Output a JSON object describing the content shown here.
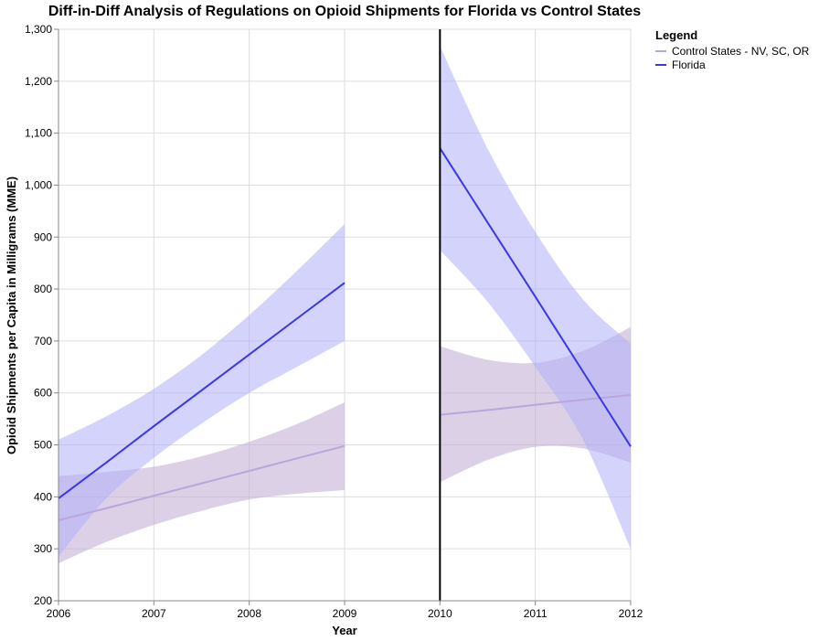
{
  "chart_data": {
    "type": "line",
    "title": "Diff-in-Diff Analysis of Regulations on Opioid Shipments for Florida vs Control States",
    "xlabel": "Year",
    "ylabel": "Opioid Shipments per Capita in Milligrams (MME)",
    "xlim": [
      2006,
      2012
    ],
    "ylim": [
      200,
      1300
    ],
    "x_ticks": [
      "2006",
      "2007",
      "2008",
      "2009",
      "2010",
      "2011",
      "2012"
    ],
    "y_ticks": [
      "200",
      "300",
      "400",
      "500",
      "600",
      "700",
      "800",
      "900",
      "1,000",
      "1,100",
      "1,200",
      "1,300"
    ],
    "grid": true,
    "policy_year": 2010,
    "legend": {
      "title": "Legend",
      "placement": "top-right",
      "entries": [
        "Control States - NV, SC, OR",
        "Florida"
      ]
    },
    "series": [
      {
        "name": "Control States - NV, SC, OR",
        "color": "#c5b0d5",
        "segments": [
          {
            "x": [
              2006,
              2006.5,
              2007,
              2007.5,
              2008,
              2008.5,
              2009
            ],
            "y": [
              355,
              378,
              402,
              426,
              450,
              474,
              498
            ],
            "lower": [
              272,
              313,
              346,
              373,
              395,
              406,
              413
            ],
            "upper": [
              440,
              448,
              458,
              478,
              506,
              540,
              582
            ]
          },
          {
            "x": [
              2010,
              2010.5,
              2011,
              2011.5,
              2012
            ],
            "y": [
              558,
              567,
              577,
              587,
              596
            ],
            "lower": [
              428,
              471,
              496,
              493,
              466
            ],
            "upper": [
              690,
              664,
              658,
              681,
              727
            ]
          }
        ]
      },
      {
        "name": "Florida",
        "color": "#3b37e6",
        "band_color": "#b0aefa",
        "segments": [
          {
            "x": [
              2006,
              2006.5,
              2007,
              2007.5,
              2008,
              2008.5,
              2009
            ],
            "y": [
              397,
              466,
              536,
              605,
              674,
              743,
              812
            ],
            "lower": [
              285,
              397,
              475,
              541,
              600,
              650,
              700
            ],
            "upper": [
              510,
              555,
              608,
              673,
              750,
              835,
              925
            ]
          },
          {
            "x": [
              2010,
              2010.5,
              2011,
              2011.5,
              2012
            ],
            "y": [
              1071,
              928,
              785,
              641,
              497
            ],
            "lower": [
              875,
              775,
              650,
              510,
              300
            ],
            "upper": [
              1268,
              1070,
              910,
              780,
              695
            ]
          }
        ]
      }
    ]
  }
}
